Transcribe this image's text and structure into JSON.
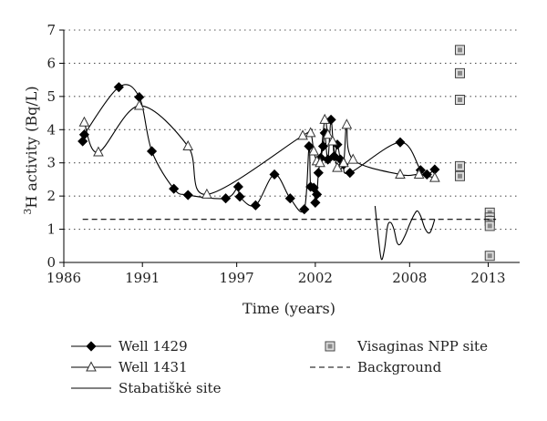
{
  "chart_data": {
    "type": "line",
    "xlabel": "Time (years)",
    "ylabel_sup": "3",
    "ylabel_rest": "H activity (Bq/L)",
    "xlim": [
      1986,
      2015
    ],
    "ylim": [
      0,
      7
    ],
    "x_ticks": [
      1986,
      1991,
      1997,
      2002,
      2008,
      2013
    ],
    "y_ticks": [
      0,
      1,
      2,
      3,
      4,
      5,
      6,
      7
    ],
    "grid": "horizontal-dotted",
    "legend_position": "bottom",
    "series": [
      {
        "name": "Well 1429",
        "marker": "diamond",
        "line": "smooth",
        "points": [
          [
            1987.2,
            3.65
          ],
          [
            1987.3,
            3.85
          ],
          [
            1989.5,
            5.28
          ],
          [
            1990.8,
            4.98
          ],
          [
            1991.6,
            3.35
          ],
          [
            1993.0,
            2.22
          ],
          [
            1993.9,
            2.03
          ],
          [
            1996.3,
            1.93
          ],
          [
            1997.1,
            2.28
          ],
          [
            1997.2,
            1.98
          ],
          [
            1998.2,
            1.72
          ],
          [
            1999.4,
            2.65
          ],
          [
            2000.4,
            1.93
          ],
          [
            2001.3,
            1.6
          ],
          [
            2001.6,
            3.5
          ],
          [
            2001.7,
            2.28
          ],
          [
            2001.9,
            2.25
          ],
          [
            2002.0,
            1.8
          ],
          [
            2002.1,
            2.05
          ],
          [
            2002.2,
            2.7
          ],
          [
            2002.35,
            3.15
          ],
          [
            2002.5,
            3.5
          ],
          [
            2002.6,
            3.9
          ],
          [
            2002.8,
            3.1
          ],
          [
            2003.0,
            4.3
          ],
          [
            2003.2,
            3.2
          ],
          [
            2003.4,
            3.55
          ],
          [
            2003.6,
            3.1
          ],
          [
            2003.8,
            2.95
          ],
          [
            2004.2,
            2.7
          ],
          [
            2007.4,
            3.62
          ],
          [
            2008.7,
            2.78
          ],
          [
            2009.1,
            2.65
          ],
          [
            2009.6,
            2.8
          ]
        ]
      },
      {
        "name": "Well 1431",
        "marker": "triangle",
        "line": "smooth",
        "points": [
          [
            1987.3,
            4.22
          ],
          [
            1988.2,
            3.32
          ],
          [
            1990.8,
            4.72
          ],
          [
            1993.9,
            3.5
          ],
          [
            1995.1,
            2.05
          ],
          [
            2001.2,
            3.82
          ],
          [
            2001.7,
            3.9
          ],
          [
            2001.9,
            3.35
          ],
          [
            2002.1,
            3.05
          ],
          [
            2002.3,
            3.0
          ],
          [
            2002.6,
            4.3
          ],
          [
            2002.8,
            3.85
          ],
          [
            2003.1,
            3.65
          ],
          [
            2003.4,
            2.85
          ],
          [
            2003.8,
            3.0
          ],
          [
            2004.0,
            4.15
          ],
          [
            2004.4,
            3.1
          ],
          [
            2007.4,
            2.65
          ],
          [
            2008.6,
            2.65
          ],
          [
            2009.6,
            2.55
          ]
        ]
      },
      {
        "name": "Stabatiškė site",
        "marker": "none",
        "line": "solid",
        "points": [
          [
            2005.8,
            1.7
          ],
          [
            2006.0,
            0.8
          ],
          [
            2006.2,
            0.1
          ],
          [
            2006.4,
            0.4
          ],
          [
            2006.6,
            1.1
          ],
          [
            2006.8,
            1.2
          ],
          [
            2007.0,
            1.0
          ],
          [
            2007.2,
            0.6
          ],
          [
            2007.4,
            0.55
          ],
          [
            2007.7,
            0.8
          ],
          [
            2008.0,
            1.15
          ],
          [
            2008.3,
            1.45
          ],
          [
            2008.5,
            1.55
          ],
          [
            2008.7,
            1.4
          ],
          [
            2009.0,
            1.0
          ],
          [
            2009.3,
            0.9
          ],
          [
            2009.6,
            1.3
          ]
        ]
      },
      {
        "name": "Visaginas NPP site",
        "marker": "square",
        "line": "none",
        "points": [
          [
            2011.2,
            6.4
          ],
          [
            2011.2,
            5.7
          ],
          [
            2011.2,
            4.9
          ],
          [
            2011.2,
            2.9
          ],
          [
            2011.2,
            2.6
          ],
          [
            2013.1,
            1.5
          ],
          [
            2013.1,
            1.35
          ],
          [
            2013.1,
            1.25
          ],
          [
            2013.1,
            1.1
          ],
          [
            2013.1,
            0.2
          ]
        ]
      },
      {
        "name": "Background",
        "marker": "none",
        "line": "dashed",
        "points": [
          [
            1987.2,
            1.3
          ],
          [
            2013.5,
            1.3
          ]
        ]
      }
    ]
  }
}
